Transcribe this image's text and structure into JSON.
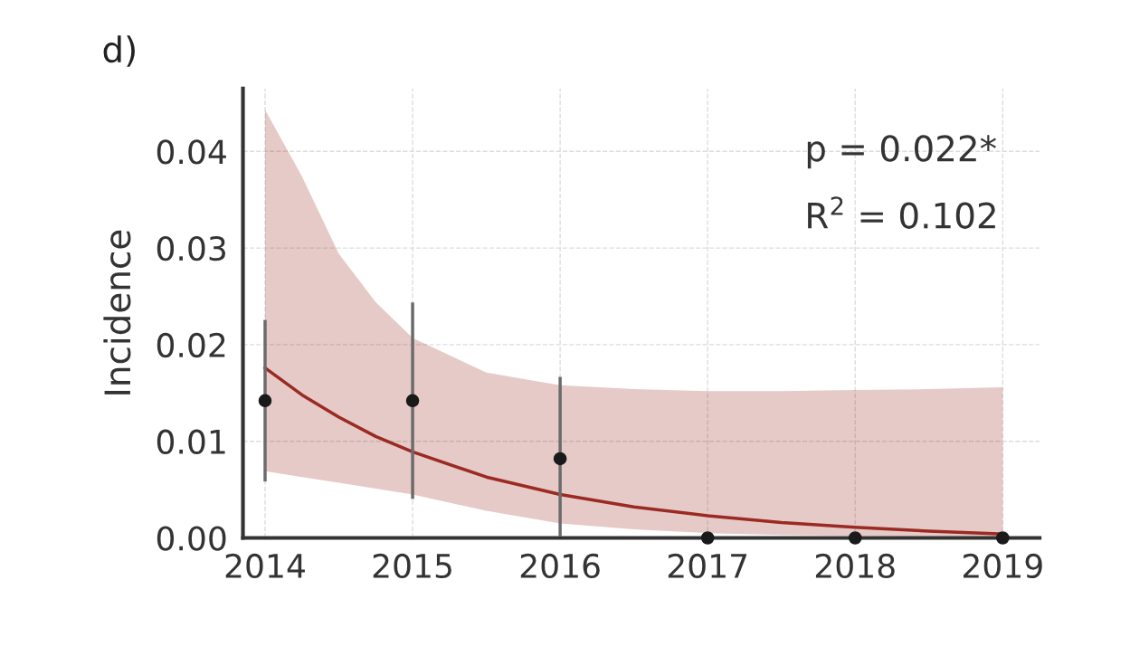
{
  "chart_data": {
    "type": "scatter",
    "title": "d)",
    "ylabel": "Incidence",
    "annotations": [
      "p = 0.022*",
      "R$^{2}$ = 0.102"
    ],
    "xlim": [
      2013.85,
      2019.25
    ],
    "ylim": [
      0,
      0.0465
    ],
    "xticks": [
      2014,
      2015,
      2016,
      2017,
      2018,
      2019
    ],
    "yticks": [
      {
        "value": 0,
        "label": "0.00"
      },
      {
        "value": 0.01,
        "label": "0.01"
      },
      {
        "value": 0.02,
        "label": "0.02"
      },
      {
        "value": 0.03,
        "label": "0.03"
      },
      {
        "value": 0.04,
        "label": "0.04"
      }
    ],
    "grid": true,
    "marker": "circle",
    "series": [
      {
        "type": "line",
        "marker": "none",
        "color": "#9b2a22",
        "x": [
          2014,
          2014.25,
          2014.5,
          2014.75,
          2015,
          2015.5,
          2016,
          2016.5,
          2017,
          2017.5,
          2018,
          2018.5,
          2019
        ],
        "values": [
          0.0176,
          0.0148,
          0.0125,
          0.0105,
          0.0089,
          0.0063,
          0.0045,
          0.0032,
          0.0023,
          0.0016,
          0.0011,
          0.0007,
          0.0004
        ],
        "upper": [
          0.0443,
          0.0374,
          0.0294,
          0.0244,
          0.0207,
          0.0171,
          0.0158,
          0.0154,
          0.0152,
          0.0152,
          0.0153,
          0.0154,
          0.0156
        ],
        "lower": [
          0.0069,
          0.0063,
          0.0057,
          0.0051,
          0.0045,
          0.0028,
          0.0015,
          0.0009,
          0.0005,
          0.0003,
          0.0002,
          0.0001,
          0.0
        ]
      },
      {
        "color": "#1a1a1a",
        "x": [
          2014,
          2015,
          2016,
          2017,
          2018,
          2019
        ],
        "values": [
          0.0142,
          0.0142,
          0.0082,
          0,
          0,
          0
        ],
        "errors": [
          [
            0.006,
            0.0224
          ],
          [
            0.0042,
            0.0242
          ],
          [
            0.0003,
            0.0165
          ],
          null,
          null,
          null
        ]
      }
    ]
  }
}
